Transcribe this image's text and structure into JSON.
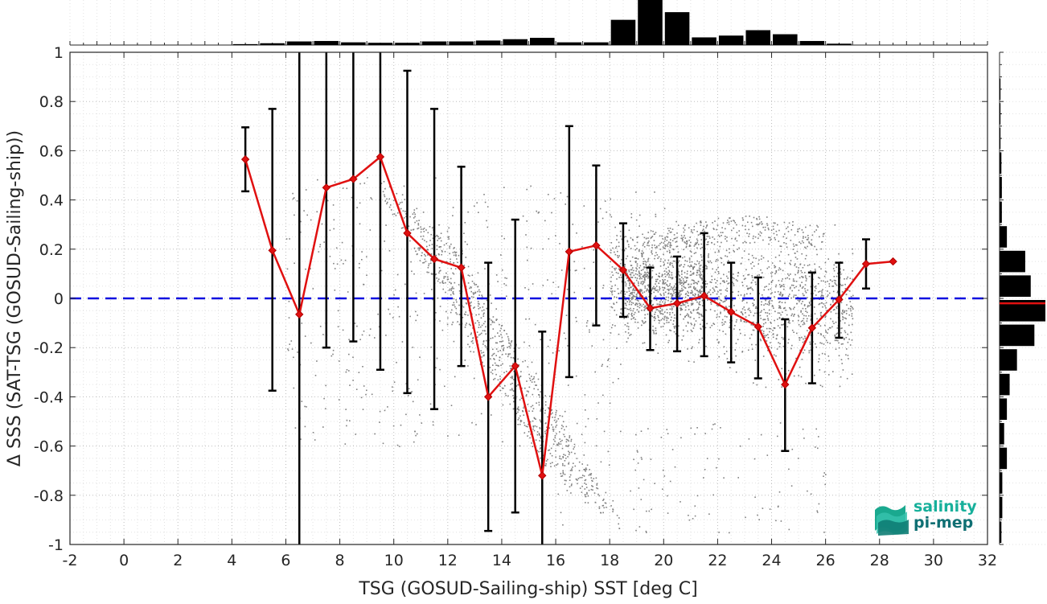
{
  "chart_data": {
    "type": "line",
    "xlabel": "TSG (GOSUD-Sailing-ship) SST [deg C]",
    "ylabel": "Δ SSS (SAT-TSG (GOSUD-Sailing-ship))",
    "xlim": [
      -2,
      32
    ],
    "ylim": [
      -1,
      1
    ],
    "x_ticks": [
      "-2",
      "0",
      "2",
      "4",
      "6",
      "8",
      "10",
      "12",
      "14",
      "16",
      "18",
      "20",
      "22",
      "24",
      "26",
      "28",
      "30",
      "32"
    ],
    "y_ticks": [
      "-1",
      "-0.8",
      "-0.6",
      "-0.4",
      "-0.2",
      "0",
      "0.2",
      "0.4",
      "0.6",
      "0.8",
      "1"
    ],
    "grid": true,
    "zero_line": {
      "y": 0,
      "color": "#1010e0",
      "style": "dashed"
    },
    "series": [
      {
        "marker": "diamond",
        "color": "#e01010",
        "x": [
          4.5,
          5.5,
          6.5,
          7.5,
          8.5,
          9.5,
          10.5,
          11.5,
          12.5,
          13.5,
          14.5,
          15.5,
          16.5,
          17.5,
          18.5,
          19.5,
          20.5,
          21.5,
          22.5,
          23.5,
          24.5,
          25.5,
          26.5,
          27.5,
          28.5
        ],
        "y": [
          0.565,
          0.195,
          -0.065,
          0.45,
          0.485,
          0.575,
          0.265,
          0.16,
          0.125,
          -0.4,
          -0.275,
          -0.72,
          0.19,
          0.215,
          0.115,
          -0.04,
          -0.02,
          0.01,
          -0.055,
          -0.115,
          -0.35,
          -0.12,
          -0.005,
          0.14,
          0.15
        ],
        "err_low": [
          0.435,
          -0.375,
          -1.0,
          -0.2,
          -0.175,
          -0.29,
          -0.385,
          -0.45,
          -0.275,
          -0.945,
          -0.87,
          -1.0,
          -0.32,
          -0.11,
          -0.075,
          -0.21,
          -0.215,
          -0.235,
          -0.26,
          -0.325,
          -0.62,
          -0.345,
          -0.16,
          0.04,
          null
        ],
        "err_high": [
          0.695,
          0.77,
          1.0,
          1.0,
          1.0,
          1.0,
          0.925,
          0.77,
          0.535,
          0.145,
          0.32,
          -0.135,
          0.7,
          0.54,
          0.305,
          0.125,
          0.17,
          0.265,
          0.145,
          0.085,
          -0.085,
          0.105,
          0.145,
          0.24,
          null
        ]
      }
    ],
    "scatter_color": "#808080",
    "top_histogram": {
      "bins_x": [
        4.5,
        5.5,
        6.5,
        7.5,
        8.5,
        9.5,
        10.5,
        11.5,
        12.5,
        13.5,
        14.5,
        15.5,
        16.5,
        17.5,
        18.5,
        19.5,
        20.5,
        21.5,
        22.5,
        23.5,
        24.5,
        25.5,
        26.5,
        27.5
      ],
      "counts": [
        0.02,
        0.04,
        0.08,
        0.09,
        0.06,
        0.05,
        0.05,
        0.08,
        0.08,
        0.1,
        0.13,
        0.16,
        0.06,
        0.06,
        0.56,
        1.0,
        0.73,
        0.17,
        0.21,
        0.33,
        0.24,
        0.09,
        0.03,
        0.0
      ]
    },
    "right_histogram": {
      "bins_y": [
        0.95,
        0.85,
        0.75,
        0.65,
        0.55,
        0.45,
        0.35,
        0.25,
        0.15,
        0.05,
        -0.05,
        -0.15,
        -0.25,
        -0.35,
        -0.45,
        -0.55,
        -0.65,
        -0.75,
        -0.85,
        -0.95
      ],
      "counts": [
        0.0,
        0.02,
        0.02,
        0.02,
        0.04,
        0.05,
        0.05,
        0.16,
        0.56,
        0.68,
        1.0,
        0.76,
        0.38,
        0.22,
        0.16,
        0.1,
        0.16,
        0.06,
        0.06,
        0.04
      ]
    },
    "right_histogram_mean_line": {
      "y": -0.02,
      "color": "#e01010"
    }
  },
  "logo": {
    "line1": "salinity",
    "line2": "pi-mep"
  }
}
